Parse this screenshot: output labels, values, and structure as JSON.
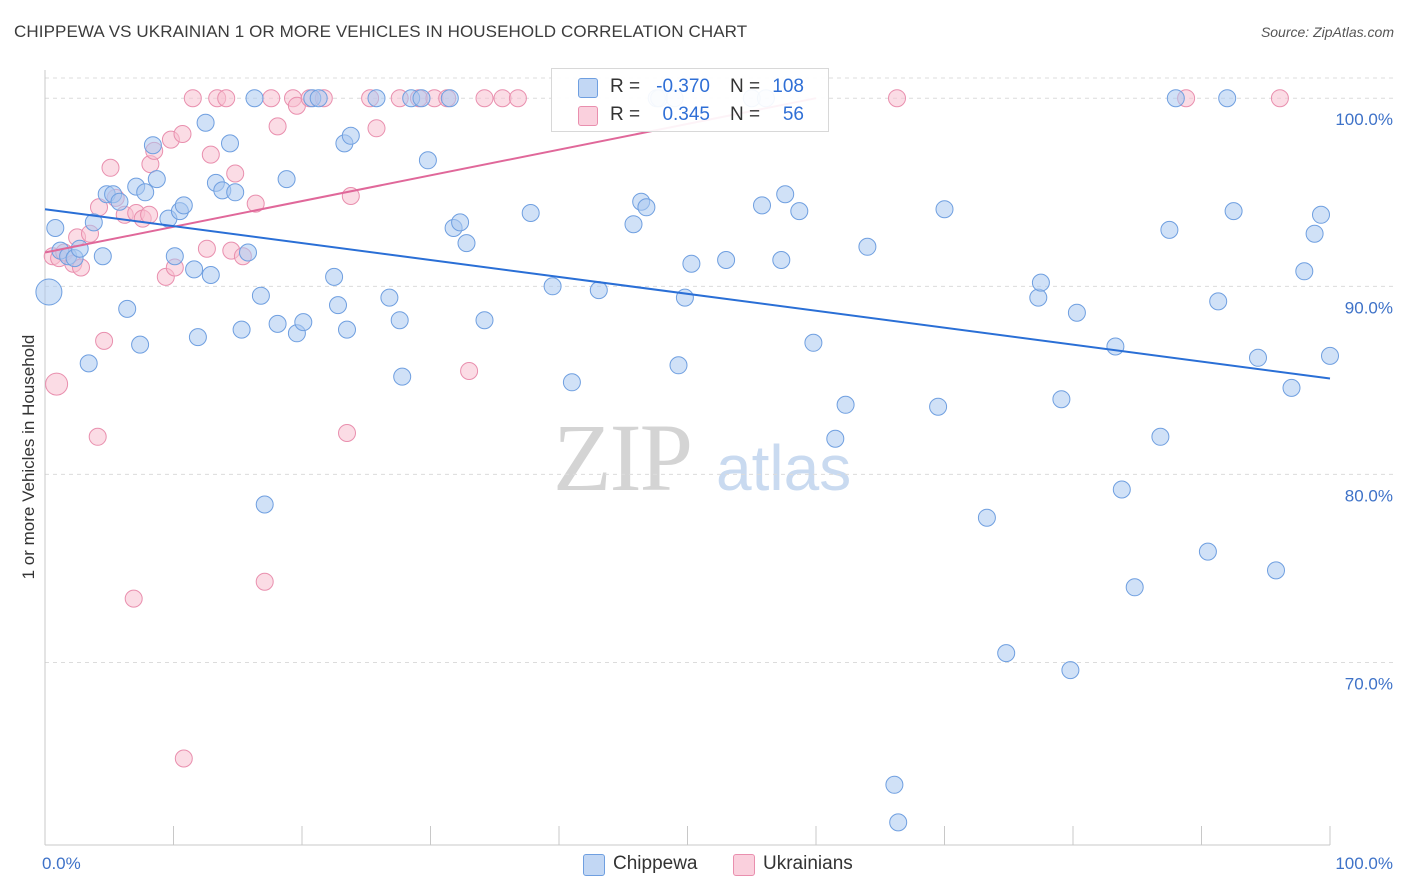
{
  "title": "CHIPPEWA VS UKRAINIAN 1 OR MORE VEHICLES IN HOUSEHOLD CORRELATION CHART",
  "source": "Source: ZipAtlas.com",
  "watermark": {
    "zip": "ZIP",
    "atlas": "atlas"
  },
  "legend_top": {
    "r_label": "R =",
    "n_label": "N =",
    "rows": [
      {
        "r": "-0.370",
        "n": "108"
      },
      {
        "r": "0.345",
        "n": "56"
      }
    ]
  },
  "legend_bottom": [
    {
      "label": "Chippewa"
    },
    {
      "label": "Ukrainians"
    }
  ],
  "colors": {
    "chippewa_fill": "#a9c8f0",
    "chippewa_stroke": "#6f9fe0",
    "chippewa_line": "#2a6fd6",
    "ukrainians_fill": "#f7bfd0",
    "ukrainians_stroke": "#e98fae",
    "ukrainians_line": "#e0689a",
    "axis_label": "#3e72c8",
    "grid": "#dcdcdc"
  },
  "chart_data": {
    "type": "scatter",
    "ylabel": "1 or more Vehicles in Household",
    "xlim": [
      0,
      100
    ],
    "ylim": [
      60.3,
      101.5
    ],
    "x_tick_labels": [
      "0.0%",
      "100.0%"
    ],
    "y_ticks": [
      70,
      80,
      90,
      100
    ],
    "y_tick_labels": [
      "70.0%",
      "80.0%",
      "90.0%",
      "100.0%"
    ],
    "grid": true,
    "series": [
      {
        "name": "Chippewa",
        "trend": {
          "x": [
            0,
            100
          ],
          "y": [
            94.1,
            85.1
          ]
        },
        "points": [
          [
            0.3,
            89.7
          ],
          [
            0.8,
            93.1
          ],
          [
            1.2,
            91.9
          ],
          [
            1.8,
            91.6
          ],
          [
            2.3,
            91.5
          ],
          [
            2.7,
            92.0
          ],
          [
            3.4,
            85.9
          ],
          [
            3.8,
            93.4
          ],
          [
            4.5,
            91.6
          ],
          [
            4.8,
            94.9
          ],
          [
            5.3,
            94.9
          ],
          [
            5.8,
            94.5
          ],
          [
            6.4,
            88.8
          ],
          [
            7.1,
            95.3
          ],
          [
            7.4,
            86.9
          ],
          [
            7.8,
            95.0
          ],
          [
            8.4,
            97.5
          ],
          [
            8.7,
            95.7
          ],
          [
            9.6,
            93.6
          ],
          [
            10.1,
            91.6
          ],
          [
            10.5,
            94.0
          ],
          [
            10.8,
            94.3
          ],
          [
            11.6,
            90.9
          ],
          [
            11.9,
            87.3
          ],
          [
            12.5,
            98.7
          ],
          [
            12.9,
            90.6
          ],
          [
            13.3,
            95.5
          ],
          [
            13.8,
            95.1
          ],
          [
            14.4,
            97.6
          ],
          [
            14.8,
            95.0
          ],
          [
            15.3,
            87.7
          ],
          [
            15.8,
            91.8
          ],
          [
            16.3,
            100.0
          ],
          [
            16.8,
            89.5
          ],
          [
            17.1,
            78.4
          ],
          [
            18.1,
            88.0
          ],
          [
            18.8,
            95.7
          ],
          [
            19.6,
            87.5
          ],
          [
            20.1,
            88.1
          ],
          [
            20.8,
            100.0
          ],
          [
            21.3,
            100.0
          ],
          [
            22.5,
            90.5
          ],
          [
            22.8,
            89.0
          ],
          [
            23.3,
            97.6
          ],
          [
            23.5,
            87.7
          ],
          [
            23.8,
            98.0
          ],
          [
            25.8,
            100.0
          ],
          [
            26.8,
            89.4
          ],
          [
            27.6,
            88.2
          ],
          [
            27.8,
            85.2
          ],
          [
            28.5,
            100.0
          ],
          [
            29.3,
            100.0
          ],
          [
            29.8,
            96.7
          ],
          [
            31.5,
            100.0
          ],
          [
            31.8,
            93.1
          ],
          [
            32.3,
            93.4
          ],
          [
            32.8,
            92.3
          ],
          [
            34.2,
            88.2
          ],
          [
            37.8,
            93.9
          ],
          [
            39.5,
            90.0
          ],
          [
            41.0,
            84.9
          ],
          [
            43.1,
            89.8
          ],
          [
            45.8,
            93.3
          ],
          [
            46.4,
            94.5
          ],
          [
            46.8,
            94.2
          ],
          [
            47.6,
            100.0
          ],
          [
            47.8,
            100.0
          ],
          [
            49.3,
            85.8
          ],
          [
            49.8,
            89.4
          ],
          [
            50.3,
            91.2
          ],
          [
            53.0,
            91.4
          ],
          [
            55.0,
            100.0
          ],
          [
            55.8,
            94.3
          ],
          [
            56.1,
            100.0
          ],
          [
            57.3,
            91.4
          ],
          [
            57.6,
            94.9
          ],
          [
            58.7,
            94.0
          ],
          [
            59.8,
            87.0
          ],
          [
            61.5,
            81.9
          ],
          [
            62.3,
            83.7
          ],
          [
            64.0,
            92.1
          ],
          [
            66.1,
            63.5
          ],
          [
            66.4,
            61.5
          ],
          [
            69.5,
            83.6
          ],
          [
            70.0,
            94.1
          ],
          [
            73.3,
            77.7
          ],
          [
            74.8,
            70.5
          ],
          [
            77.3,
            89.4
          ],
          [
            77.5,
            90.2
          ],
          [
            79.1,
            84.0
          ],
          [
            79.8,
            69.6
          ],
          [
            80.3,
            88.6
          ],
          [
            83.3,
            86.8
          ],
          [
            83.8,
            79.2
          ],
          [
            84.8,
            74.0
          ],
          [
            86.8,
            82.0
          ],
          [
            87.5,
            93.0
          ],
          [
            88.0,
            100.0
          ],
          [
            90.5,
            75.9
          ],
          [
            91.3,
            89.2
          ],
          [
            92.0,
            100.0
          ],
          [
            92.5,
            94.0
          ],
          [
            94.4,
            86.2
          ],
          [
            95.8,
            74.9
          ],
          [
            97.0,
            84.6
          ],
          [
            98.0,
            90.8
          ],
          [
            98.8,
            92.8
          ],
          [
            99.3,
            93.8
          ],
          [
            100.0,
            86.3
          ],
          [
            49.0,
            100.0
          ]
        ]
      },
      {
        "name": "Ukrainians",
        "trend": {
          "x": [
            0,
            60
          ],
          "y": [
            91.8,
            100.0
          ]
        },
        "points": [
          [
            0.6,
            91.6
          ],
          [
            0.9,
            84.8
          ],
          [
            1.1,
            91.5
          ],
          [
            1.5,
            91.8
          ],
          [
            2.2,
            91.2
          ],
          [
            2.5,
            92.6
          ],
          [
            2.8,
            91.0
          ],
          [
            3.5,
            92.8
          ],
          [
            4.1,
            82.0
          ],
          [
            4.2,
            94.2
          ],
          [
            4.6,
            87.1
          ],
          [
            5.1,
            96.3
          ],
          [
            5.5,
            94.7
          ],
          [
            6.2,
            93.8
          ],
          [
            6.9,
            73.4
          ],
          [
            7.1,
            93.9
          ],
          [
            7.6,
            93.6
          ],
          [
            8.1,
            93.8
          ],
          [
            8.2,
            96.5
          ],
          [
            8.5,
            97.2
          ],
          [
            9.4,
            90.5
          ],
          [
            9.8,
            97.8
          ],
          [
            10.1,
            91.0
          ],
          [
            10.7,
            98.1
          ],
          [
            10.8,
            64.9
          ],
          [
            11.5,
            100.0
          ],
          [
            12.6,
            92.0
          ],
          [
            12.9,
            97.0
          ],
          [
            13.4,
            100.0
          ],
          [
            14.1,
            100.0
          ],
          [
            14.5,
            91.9
          ],
          [
            14.8,
            96.0
          ],
          [
            15.4,
            91.6
          ],
          [
            16.4,
            94.4
          ],
          [
            17.1,
            74.3
          ],
          [
            17.6,
            100.0
          ],
          [
            18.1,
            98.5
          ],
          [
            19.3,
            100.0
          ],
          [
            19.6,
            99.6
          ],
          [
            20.6,
            100.0
          ],
          [
            21.7,
            100.0
          ],
          [
            23.5,
            82.2
          ],
          [
            23.8,
            94.8
          ],
          [
            25.3,
            100.0
          ],
          [
            25.8,
            98.4
          ],
          [
            27.6,
            100.0
          ],
          [
            29.1,
            100.0
          ],
          [
            30.3,
            100.0
          ],
          [
            31.3,
            100.0
          ],
          [
            33.0,
            85.5
          ],
          [
            34.2,
            100.0
          ],
          [
            35.6,
            100.0
          ],
          [
            36.8,
            100.0
          ],
          [
            66.3,
            100.0
          ],
          [
            88.8,
            100.0
          ],
          [
            96.1,
            100.0
          ]
        ]
      }
    ]
  }
}
